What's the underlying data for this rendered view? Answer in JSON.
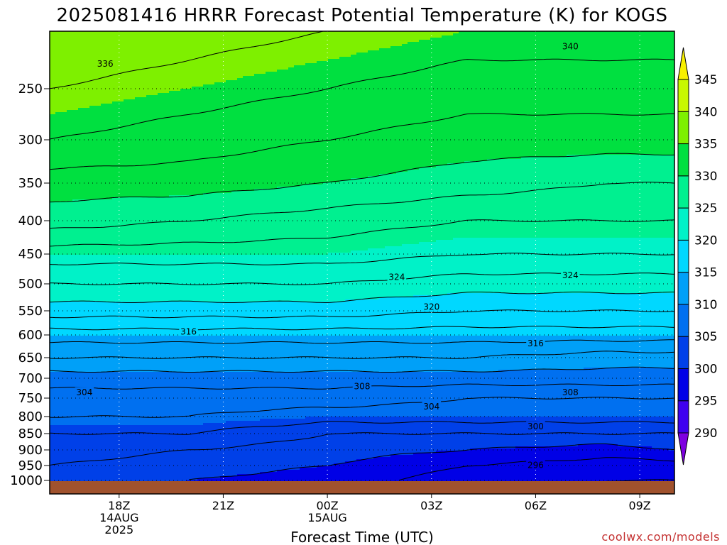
{
  "chart_data": {
    "type": "heatmap",
    "title": "2025081416 HRRR Forecast Potential Temperature (K) for KOGS",
    "xlabel": "Forecast Time (UTC)",
    "credit": "coolwx.com/models",
    "pressure_levels": [
      1000,
      950,
      900,
      850,
      800,
      750,
      700,
      650,
      600,
      550,
      500,
      450,
      400,
      350,
      300,
      250
    ],
    "pressure_range": [
      1000,
      200
    ],
    "x_range_hours": [
      16,
      34
    ],
    "x_ticks": [
      {
        "hour": 18,
        "lines": [
          "18Z",
          "14AUG",
          "2025"
        ]
      },
      {
        "hour": 21,
        "lines": [
          "21Z"
        ]
      },
      {
        "hour": 24,
        "lines": [
          "00Z",
          "15AUG"
        ]
      },
      {
        "hour": 27,
        "lines": [
          "03Z"
        ]
      },
      {
        "hour": 30,
        "lines": [
          "06Z"
        ]
      },
      {
        "hour": 33,
        "lines": [
          "09Z"
        ]
      }
    ],
    "colorbar": {
      "levels": [
        290,
        295,
        300,
        305,
        310,
        315,
        320,
        325,
        330,
        335,
        340,
        345
      ],
      "labels": [
        "290",
        "295",
        "300",
        "305",
        "310",
        "315",
        "320",
        "325",
        "330",
        "335",
        "340",
        "345"
      ],
      "colors": [
        "#7e00e0",
        "#3f00f0",
        "#0000e6",
        "#0040e8",
        "#0070f0",
        "#00a0f8",
        "#00d8ff",
        "#00f2c8",
        "#00f090",
        "#00e040",
        "#7ef000",
        "#c8f800",
        "#f8f000"
      ]
    },
    "theta_profile_at_hours": [
      {
        "hour": 16,
        "values": [
          301,
          302,
          303,
          304,
          306,
          307,
          309,
          312,
          315,
          319,
          322,
          325,
          329,
          331,
          334,
          336
        ]
      },
      {
        "hour": 20,
        "values": [
          300,
          301,
          302,
          304,
          306,
          307,
          309,
          312,
          315,
          319,
          322,
          325,
          328,
          331,
          333,
          335
        ]
      },
      {
        "hour": 24,
        "values": [
          299,
          300,
          301,
          302,
          305,
          307,
          309,
          312,
          315,
          319,
          322,
          325,
          327,
          330,
          332,
          334
        ]
      },
      {
        "hour": 28,
        "values": [
          297,
          298,
          300,
          302,
          305,
          306,
          309,
          312,
          315,
          318,
          321,
          324,
          326,
          329,
          331,
          333
        ]
      },
      {
        "hour": 32,
        "values": [
          296,
          297,
          299,
          302,
          305,
          306,
          309,
          311,
          315,
          318,
          321,
          324,
          326,
          328,
          331,
          333
        ]
      },
      {
        "hour": 34,
        "values": [
          296,
          297,
          300,
          302,
          305,
          306,
          309,
          311,
          315,
          318,
          321,
          324,
          326,
          328,
          331,
          333
        ]
      }
    ],
    "contour_labels": [
      {
        "text": "336",
        "hour": 17.6,
        "pressure": 228
      },
      {
        "text": "340",
        "hour": 31.0,
        "pressure": 213
      },
      {
        "text": "324",
        "hour": 26.0,
        "pressure": 488
      },
      {
        "text": "324",
        "hour": 31.0,
        "pressure": 485
      },
      {
        "text": "320",
        "hour": 27.0,
        "pressure": 542
      },
      {
        "text": "316",
        "hour": 20.0,
        "pressure": 593
      },
      {
        "text": "316",
        "hour": 30.0,
        "pressure": 618
      },
      {
        "text": "308",
        "hour": 25.0,
        "pressure": 720
      },
      {
        "text": "308",
        "hour": 31.0,
        "pressure": 735
      },
      {
        "text": "304",
        "hour": 17.0,
        "pressure": 735
      },
      {
        "text": "304",
        "hour": 27.0,
        "pressure": 772
      },
      {
        "text": "300",
        "hour": 30.0,
        "pressure": 828
      },
      {
        "text": "296",
        "hour": 30.0,
        "pressure": 948
      }
    ],
    "ground_color": "#a0522d",
    "grid": true
  }
}
